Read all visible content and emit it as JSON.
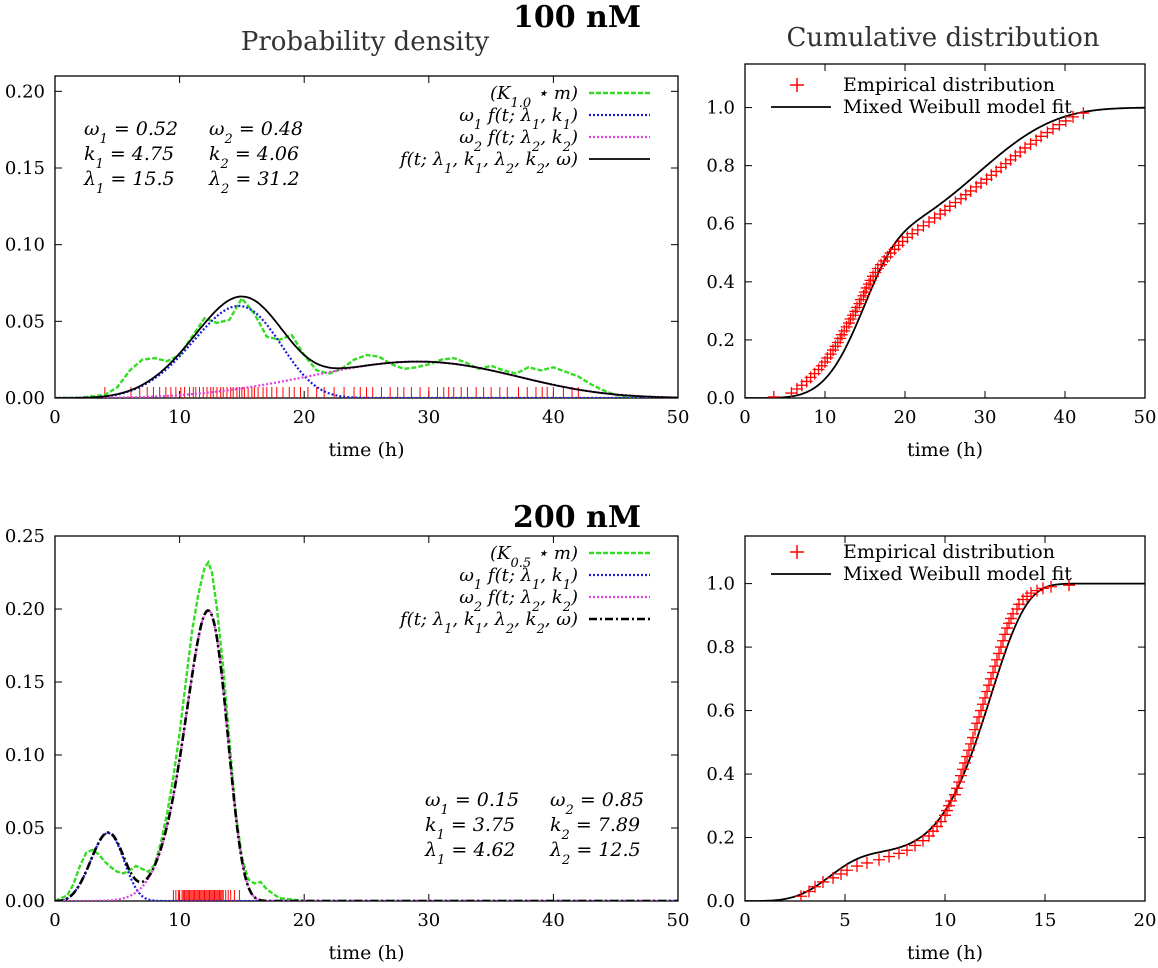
{
  "figure": {
    "column_titles": {
      "density": "Probability density",
      "cumulative": "Cumulative distribution"
    },
    "row_titles": [
      "100 nM",
      "200 nM"
    ]
  },
  "colors": {
    "kde": "#33dd22",
    "comp1": "#1a1adc",
    "comp2": "#e23ee2",
    "mix": "#000000",
    "rug": "#ff0000",
    "empirical": "#ff0000"
  },
  "chart_data": [
    {
      "id": "density-100",
      "type": "line",
      "title": "Probability density",
      "xlabel": "time (h)",
      "ylabel": "",
      "xlim": [
        0,
        50
      ],
      "ylim": [
        0,
        0.21
      ],
      "xticks": [
        0,
        10,
        20,
        30,
        40,
        50
      ],
      "yticks": [
        0.0,
        0.05,
        0.1,
        0.15,
        0.2
      ],
      "ytick_labels": [
        "0.00",
        "0.05",
        "0.10",
        "0.15",
        "0.20"
      ],
      "mix_dashed": false,
      "legend": [
        "(K1.0 ⋆ m)",
        "ω1 f(t; λ1, k1)",
        "ω2 f(t; λ2, k2)",
        "f(t; λ1, k1, λ2, k2, ω)"
      ],
      "params": {
        "w1": 0.52,
        "w2": 0.48,
        "k1": 4.75,
        "k2": 4.06,
        "l1": 15.5,
        "l2": 31.2
      },
      "param_text": [
        [
          "ω1 = 0.52",
          "ω2 = 0.48"
        ],
        [
          "k1 = 4.75",
          "k2 = 4.06"
        ],
        [
          "λ1 = 15.5",
          "λ2 = 31.2"
        ]
      ],
      "kde": {
        "x": [
          0,
          2,
          4,
          5,
          6,
          7,
          8,
          9,
          10,
          11,
          12,
          13,
          14,
          15,
          16,
          17,
          18,
          19,
          20,
          21,
          22,
          23,
          24,
          25,
          26,
          27,
          28,
          29,
          30,
          31,
          32,
          33,
          34,
          35,
          36,
          37,
          38,
          39,
          40,
          41,
          42,
          43,
          44,
          45,
          46,
          48,
          50
        ],
        "y": [
          0,
          0.0002,
          0.002,
          0.007,
          0.018,
          0.025,
          0.026,
          0.024,
          0.028,
          0.04,
          0.052,
          0.049,
          0.051,
          0.065,
          0.055,
          0.04,
          0.038,
          0.041,
          0.028,
          0.018,
          0.016,
          0.019,
          0.025,
          0.028,
          0.027,
          0.022,
          0.019,
          0.02,
          0.022,
          0.025,
          0.026,
          0.023,
          0.019,
          0.021,
          0.018,
          0.016,
          0.02,
          0.018,
          0.02,
          0.017,
          0.014,
          0.009,
          0.005,
          0.002,
          0.0008,
          0.0001,
          0
        ]
      },
      "rug": [
        4.0,
        6.1,
        6.8,
        7.4,
        7.9,
        8.4,
        8.9,
        9.3,
        9.7,
        10.1,
        10.4,
        10.8,
        11.1,
        11.3,
        11.6,
        11.9,
        12.2,
        12.5,
        12.7,
        13.0,
        13.3,
        13.5,
        13.8,
        14.1,
        14.3,
        14.6,
        14.8,
        15.0,
        15.2,
        15.5,
        15.8,
        16.0,
        16.3,
        16.7,
        17.0,
        17.4,
        17.8,
        18.3,
        18.8,
        19.2,
        19.7,
        20.3,
        21.0,
        21.6,
        22.4,
        23.2,
        24.0,
        24.5,
        25.0,
        25.5,
        26.2,
        26.9,
        27.5,
        28.0,
        28.6,
        29.3,
        30.0,
        30.7,
        31.2,
        31.6,
        32.0,
        32.6,
        33.1,
        33.8,
        34.4,
        35.0,
        35.7,
        36.3,
        37.2,
        37.9,
        38.6,
        39.1,
        39.5,
        40.0,
        40.8,
        41.5,
        42.0
      ]
    },
    {
      "id": "cdf-100",
      "type": "scatter",
      "title": "Cumulative distribution",
      "xlabel": "time (h)",
      "xlim": [
        0,
        50
      ],
      "ylim": [
        0,
        1.15
      ],
      "xticks": [
        0,
        10,
        20,
        30,
        40,
        50
      ],
      "yticks": [
        0.0,
        0.2,
        0.4,
        0.6,
        0.8,
        1.0
      ],
      "ytick_labels": [
        "0.0",
        "0.2",
        "0.4",
        "0.6",
        "0.8",
        "1.0"
      ],
      "legend": [
        "Empirical distribution",
        "Mixed Weibull model fit"
      ],
      "fit_params": {
        "w1": 0.52,
        "w2": 0.48,
        "k1": 4.75,
        "k2": 4.06,
        "l1": 15.5,
        "l2": 31.2
      },
      "empirical_x": [
        3.6,
        5.8,
        6.5,
        7.1,
        7.7,
        8.2,
        8.7,
        9.2,
        9.6,
        10.0,
        10.3,
        10.7,
        11.0,
        11.3,
        11.6,
        11.9,
        12.1,
        12.4,
        12.7,
        13.0,
        13.2,
        13.5,
        13.8,
        14.0,
        14.3,
        14.5,
        14.8,
        15.0,
        15.2,
        15.5,
        15.7,
        16.0,
        16.3,
        16.6,
        17.0,
        17.4,
        17.8,
        18.2,
        18.7,
        19.2,
        19.7,
        20.3,
        20.9,
        21.6,
        22.3,
        23.0,
        23.7,
        24.4,
        25.0,
        25.6,
        26.3,
        27.0,
        27.6,
        28.2,
        28.9,
        29.5,
        30.2,
        30.8,
        31.4,
        32.0,
        32.6,
        33.2,
        33.8,
        34.4,
        35.0,
        35.7,
        36.4,
        37.0,
        37.8,
        38.5,
        39.3,
        40.1,
        41.0,
        42.3
      ],
      "empirical_y": [
        0.004,
        0.017,
        0.031,
        0.044,
        0.057,
        0.071,
        0.084,
        0.098,
        0.111,
        0.124,
        0.138,
        0.151,
        0.165,
        0.178,
        0.191,
        0.205,
        0.218,
        0.231,
        0.245,
        0.258,
        0.272,
        0.285,
        0.298,
        0.312,
        0.325,
        0.339,
        0.352,
        0.365,
        0.379,
        0.392,
        0.405,
        0.419,
        0.432,
        0.446,
        0.459,
        0.472,
        0.486,
        0.499,
        0.512,
        0.526,
        0.539,
        0.553,
        0.566,
        0.579,
        0.593,
        0.606,
        0.62,
        0.633,
        0.646,
        0.66,
        0.673,
        0.686,
        0.7,
        0.713,
        0.727,
        0.74,
        0.753,
        0.767,
        0.78,
        0.794,
        0.807,
        0.82,
        0.834,
        0.847,
        0.861,
        0.874,
        0.887,
        0.901,
        0.914,
        0.927,
        0.941,
        0.954,
        0.968,
        0.981
      ]
    },
    {
      "id": "density-200",
      "type": "line",
      "title": "",
      "xlabel": "time (h)",
      "xlim": [
        0,
        50
      ],
      "ylim": [
        0,
        0.25
      ],
      "xticks": [
        0,
        10,
        20,
        30,
        40,
        50
      ],
      "yticks": [
        0.0,
        0.05,
        0.1,
        0.15,
        0.2,
        0.25
      ],
      "ytick_labels": [
        "0.00",
        "0.05",
        "0.10",
        "0.15",
        "0.20",
        "0.25"
      ],
      "mix_dashed": true,
      "legend": [
        "(K0.5 ⋆ m)",
        "ω1 f(t; λ1, k1)",
        "ω2 f(t; λ2, k2)",
        "f(t; λ1, k1, λ2, k2, ω)"
      ],
      "params": {
        "w1": 0.15,
        "w2": 0.85,
        "k1": 3.75,
        "k2": 7.89,
        "l1": 4.62,
        "l2": 12.5
      },
      "param_text": [
        [
          "ω1 = 0.15",
          "ω2 = 0.85"
        ],
        [
          "k1 = 3.75",
          "k2 = 7.89"
        ],
        [
          "λ1 = 4.62",
          "λ2 = 12.5"
        ]
      ],
      "kde": {
        "x": [
          0,
          1,
          1.5,
          2,
          2.5,
          3,
          3.5,
          4,
          4.5,
          5,
          5.5,
          6,
          6.5,
          7,
          7.5,
          8,
          8.5,
          9,
          9.5,
          10,
          10.5,
          11,
          11.5,
          12,
          12.3,
          12.6,
          13,
          13.5,
          14,
          14.5,
          15,
          15.5,
          16,
          16.5,
          17,
          18,
          20,
          50
        ],
        "y": [
          0,
          0.004,
          0.012,
          0.024,
          0.033,
          0.035,
          0.032,
          0.027,
          0.023,
          0.02,
          0.019,
          0.021,
          0.024,
          0.022,
          0.02,
          0.025,
          0.04,
          0.06,
          0.085,
          0.115,
          0.15,
          0.185,
          0.21,
          0.228,
          0.232,
          0.225,
          0.2,
          0.16,
          0.11,
          0.06,
          0.03,
          0.015,
          0.012,
          0.013,
          0.008,
          0.002,
          0,
          0
        ]
      },
      "rug": [
        9.5,
        9.7,
        9.9,
        10.0,
        10.2,
        10.3,
        10.4,
        10.5,
        10.6,
        10.7,
        10.8,
        10.9,
        11.0,
        11.1,
        11.2,
        11.3,
        11.4,
        11.5,
        11.6,
        11.7,
        11.8,
        11.9,
        12.0,
        12.1,
        12.2,
        12.3,
        12.4,
        12.5,
        12.6,
        12.7,
        12.8,
        12.9,
        13.0,
        13.1,
        13.2,
        13.3,
        13.4,
        13.5,
        13.7,
        13.9,
        14.1,
        14.4,
        14.8
      ]
    },
    {
      "id": "cdf-200",
      "type": "scatter",
      "title": "",
      "xlabel": "time (h)",
      "xlim": [
        0,
        20
      ],
      "ylim": [
        0,
        1.15
      ],
      "xticks": [
        0,
        5,
        10,
        15,
        20
      ],
      "yticks": [
        0.0,
        0.2,
        0.4,
        0.6,
        0.8,
        1.0
      ],
      "ytick_labels": [
        "0.0",
        "0.2",
        "0.4",
        "0.6",
        "0.8",
        "1.0"
      ],
      "legend": [
        "Empirical distribution",
        "Mixed Weibull model fit"
      ],
      "fit_params": {
        "w1": 0.15,
        "w2": 0.85,
        "k1": 3.75,
        "k2": 7.89,
        "l1": 4.62,
        "l2": 12.5
      },
      "empirical_x": [
        2.8,
        3.2,
        3.5,
        3.9,
        4.4,
        4.8,
        5.1,
        5.6,
        6.1,
        6.7,
        7.2,
        7.7,
        8.1,
        8.5,
        8.9,
        9.2,
        9.4,
        9.6,
        9.8,
        10.0,
        10.1,
        10.2,
        10.3,
        10.5,
        10.6,
        10.7,
        10.8,
        10.9,
        11.0,
        11.1,
        11.2,
        11.3,
        11.4,
        11.5,
        11.6,
        11.7,
        11.8,
        11.9,
        12.0,
        12.1,
        12.2,
        12.3,
        12.4,
        12.5,
        12.6,
        12.7,
        12.8,
        12.9,
        13.0,
        13.1,
        13.2,
        13.3,
        13.4,
        13.6,
        13.7,
        13.9,
        14.1,
        14.3,
        14.6,
        14.9,
        15.3,
        16.2
      ],
      "empirical_y": [
        0.015,
        0.03,
        0.045,
        0.06,
        0.073,
        0.085,
        0.097,
        0.11,
        0.12,
        0.13,
        0.14,
        0.15,
        0.16,
        0.175,
        0.19,
        0.205,
        0.22,
        0.235,
        0.25,
        0.27,
        0.285,
        0.3,
        0.315,
        0.335,
        0.355,
        0.375,
        0.395,
        0.415,
        0.435,
        0.455,
        0.475,
        0.495,
        0.515,
        0.54,
        0.56,
        0.58,
        0.6,
        0.62,
        0.64,
        0.66,
        0.68,
        0.7,
        0.72,
        0.74,
        0.76,
        0.78,
        0.8,
        0.82,
        0.84,
        0.86,
        0.875,
        0.89,
        0.905,
        0.92,
        0.935,
        0.95,
        0.96,
        0.97,
        0.978,
        0.985,
        0.99,
        0.995
      ]
    }
  ]
}
